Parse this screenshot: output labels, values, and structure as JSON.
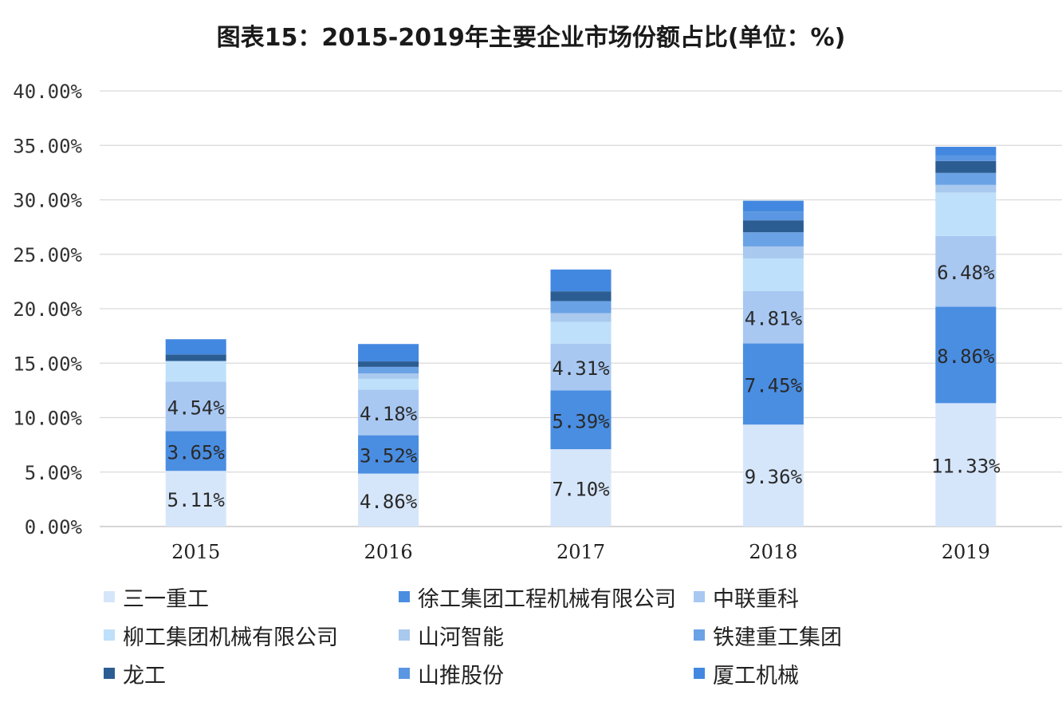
{
  "chart_data": {
    "type": "bar",
    "stacked": true,
    "title": "图表15：2015-2019年主要企业市场份额占比(单位：%)",
    "categories": [
      "2015",
      "2016",
      "2017",
      "2018",
      "2019"
    ],
    "ylim": [
      0,
      40
    ],
    "yticks": [
      "0.00%",
      "5.00%",
      "10.00%",
      "15.00%",
      "20.00%",
      "25.00%",
      "30.00%",
      "35.00%",
      "40.00%"
    ],
    "grid": true,
    "legend_position": "bottom",
    "series": [
      {
        "name": "三一重工",
        "color": "#d6e6fa",
        "values": [
          5.11,
          4.86,
          7.1,
          9.36,
          11.33
        ],
        "labels": [
          "5.11%",
          "4.86%",
          "7.10%",
          "9.36%",
          "11.33%"
        ]
      },
      {
        "name": "徐工集团工程机械有限公司",
        "color": "#4a8ee2",
        "values": [
          3.65,
          3.52,
          5.39,
          7.45,
          8.86
        ],
        "labels": [
          "3.65%",
          "3.52%",
          "5.39%",
          "7.45%",
          "8.86%"
        ]
      },
      {
        "name": "中联重科",
        "color": "#a8c8f2",
        "values": [
          4.54,
          4.18,
          4.31,
          4.81,
          6.48
        ],
        "labels": [
          "4.54%",
          "4.18%",
          "4.31%",
          "4.81%",
          "6.48%"
        ]
      },
      {
        "name": "柳工集团机械有限公司",
        "color": "#bfe0fa",
        "values": [
          1.9,
          1.0,
          2.0,
          3.0,
          4.0
        ],
        "labels": [
          "",
          "",
          "",
          "",
          ""
        ]
      },
      {
        "name": "山河智能",
        "color": "#a9c9ee",
        "values": [
          0.0,
          0.5,
          0.8,
          1.1,
          0.7
        ],
        "labels": [
          "",
          "",
          "",
          "",
          ""
        ]
      },
      {
        "name": "铁建重工集团",
        "color": "#6aa2e6",
        "values": [
          0.0,
          0.6,
          1.1,
          1.3,
          1.1
        ],
        "labels": [
          "",
          "",
          "",
          "",
          ""
        ]
      },
      {
        "name": "龙工",
        "color": "#2c5d92",
        "values": [
          0.6,
          0.5,
          0.9,
          1.1,
          1.1
        ],
        "labels": [
          "",
          "",
          "",
          "",
          ""
        ]
      },
      {
        "name": "山推股份",
        "color": "#5a96e2",
        "values": [
          0.0,
          0.0,
          0.0,
          0.8,
          0.5
        ],
        "labels": [
          "",
          "",
          "",
          "",
          ""
        ]
      },
      {
        "name": "厦工机械",
        "color": "#4388e0",
        "values": [
          1.4,
          1.6,
          2.0,
          1.0,
          0.8
        ],
        "labels": [
          "",
          "",
          "",
          "",
          ""
        ]
      }
    ]
  }
}
